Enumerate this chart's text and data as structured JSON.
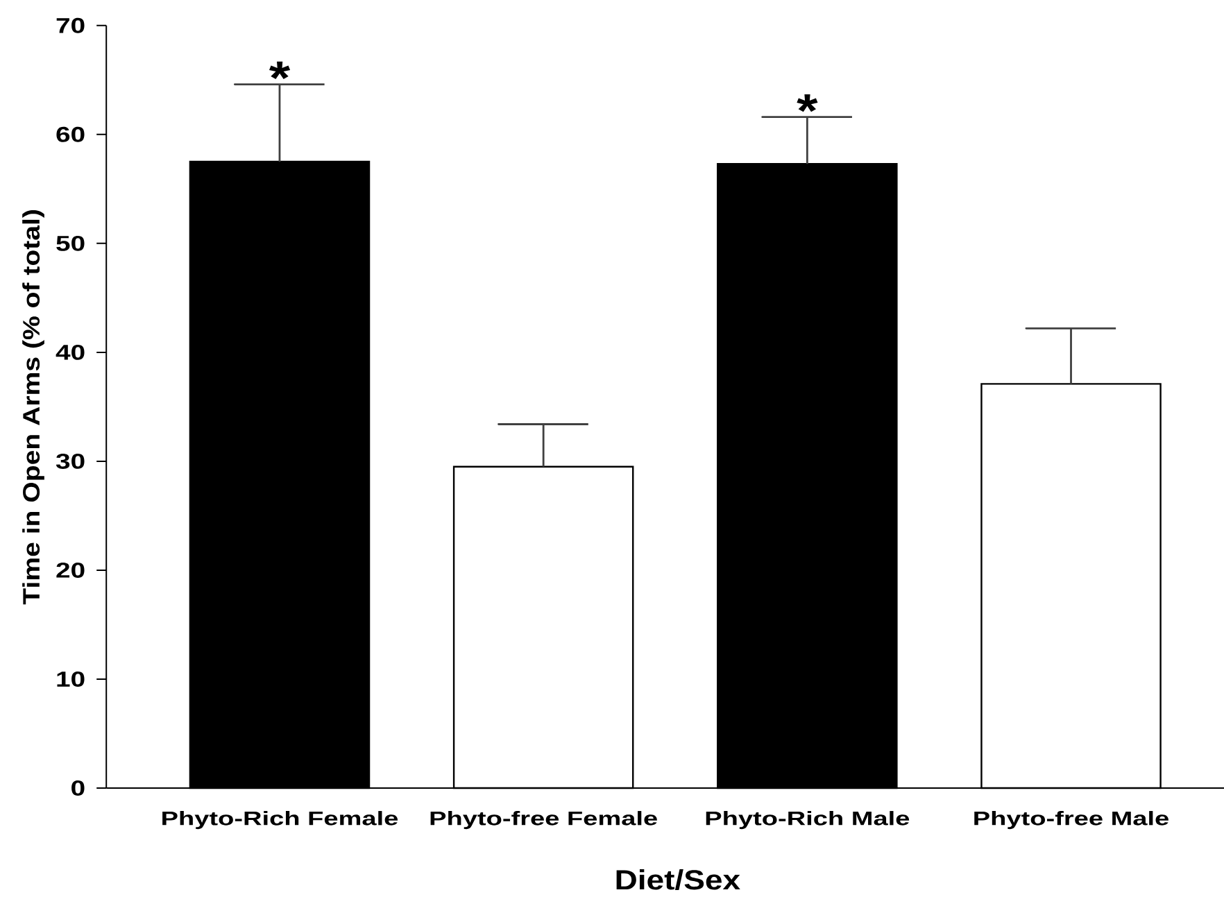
{
  "chart_data": {
    "type": "bar",
    "xlabel": "Diet/Sex",
    "ylabel": "Time in Open Arms (% of total)",
    "categories": [
      "Phyto-Rich Female",
      "Phyto-free Female",
      "Phyto-Rich Male",
      "Phyto-free Male"
    ],
    "values": [
      57.5,
      29.5,
      57.3,
      37.1
    ],
    "colors": [
      "#000000",
      "#ffffff",
      "#000000",
      "#ffffff"
    ],
    "errors": [
      [
        57.5,
        64.6
      ],
      [
        29.5,
        33.4
      ],
      [
        57.3,
        61.6
      ],
      [
        37.1,
        42.2
      ]
    ],
    "ylim": [
      0,
      70
    ],
    "yticks": [
      0,
      10,
      20,
      30,
      40,
      50,
      60,
      70
    ],
    "annotations": [
      {
        "text": "*",
        "x": "Phyto-Rich Female",
        "y": 64.6
      },
      {
        "text": "*",
        "x": "Phyto-Rich Male",
        "y": 61.6
      }
    ]
  }
}
